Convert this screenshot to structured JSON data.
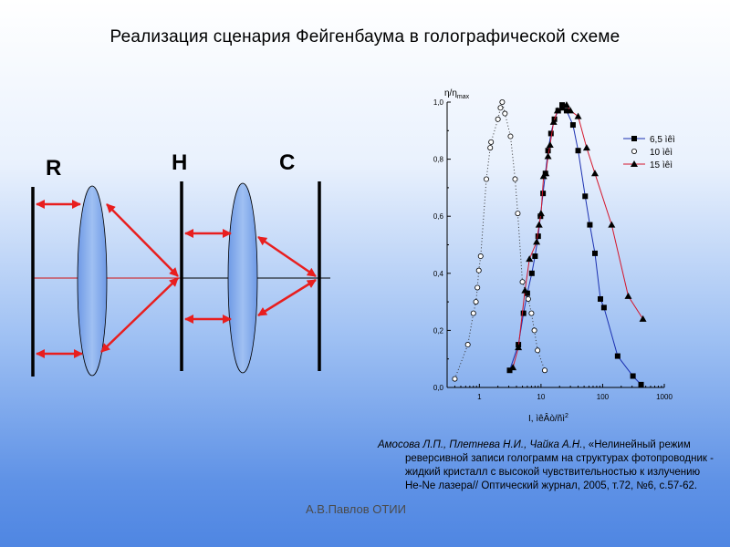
{
  "title": "Реализация сценария Фейгенбаума в голографической схеме",
  "diagram": {
    "label_r": "R",
    "label_h": "H",
    "label_c": "C"
  },
  "chart_data": {
    "type": "scatter",
    "y_axis_label": "η/η",
    "y_axis_label_sub": "max",
    "x_axis_label": "I, ìêÂò/ñì",
    "x_axis_label_sup": "2",
    "x_scale": "log",
    "xlim": [
      0.3,
      1000
    ],
    "ylim": [
      0.0,
      1.0
    ],
    "y_ticks": [
      "0,0",
      "0,2",
      "0,4",
      "0,6",
      "0,8",
      "1,0"
    ],
    "x_ticks": [
      "1",
      "10",
      "100",
      "1000"
    ],
    "grid": false,
    "legend_position": "right",
    "series": [
      {
        "name": "6,5 ìêì",
        "marker": "square",
        "line": "solid",
        "color": "#1a2fb0",
        "points": [
          [
            3.1,
            0.06
          ],
          [
            4.3,
            0.15
          ],
          [
            5.2,
            0.26
          ],
          [
            6.0,
            0.33
          ],
          [
            7.1,
            0.4
          ],
          [
            8.0,
            0.46
          ],
          [
            9.0,
            0.53
          ],
          [
            9.8,
            0.6
          ],
          [
            10.8,
            0.68
          ],
          [
            11.8,
            0.75
          ],
          [
            13.0,
            0.83
          ],
          [
            14.5,
            0.89
          ],
          [
            16.5,
            0.94
          ],
          [
            19.0,
            0.97
          ],
          [
            22.0,
            0.99
          ],
          [
            26.0,
            0.97
          ],
          [
            33.0,
            0.92
          ],
          [
            40.0,
            0.83
          ],
          [
            52.0,
            0.67
          ],
          [
            62.0,
            0.57
          ],
          [
            75.0,
            0.47
          ],
          [
            92.0,
            0.31
          ],
          [
            105.0,
            0.28
          ],
          [
            175.0,
            0.11
          ],
          [
            310.0,
            0.04
          ],
          [
            420.0,
            0.01
          ]
        ]
      },
      {
        "name": "10 ìêì",
        "marker": "circle",
        "line": "dotted",
        "color": "#333333",
        "points": [
          [
            0.4,
            0.03
          ],
          [
            0.65,
            0.15
          ],
          [
            0.8,
            0.26
          ],
          [
            0.88,
            0.3
          ],
          [
            0.93,
            0.35
          ],
          [
            0.98,
            0.41
          ],
          [
            1.05,
            0.46
          ],
          [
            1.3,
            0.73
          ],
          [
            1.5,
            0.84
          ],
          [
            1.55,
            0.86
          ],
          [
            2.0,
            0.94
          ],
          [
            2.2,
            0.98
          ],
          [
            2.35,
            1.0
          ],
          [
            2.6,
            0.96
          ],
          [
            3.2,
            0.88
          ],
          [
            3.8,
            0.73
          ],
          [
            4.2,
            0.61
          ],
          [
            5.0,
            0.37
          ],
          [
            6.2,
            0.31
          ],
          [
            7.0,
            0.26
          ],
          [
            7.8,
            0.2
          ],
          [
            8.8,
            0.13
          ],
          [
            11.5,
            0.06
          ]
        ]
      },
      {
        "name": "15 ìêì",
        "marker": "triangle",
        "line": "solid",
        "color": "#d4152a",
        "points": [
          [
            3.5,
            0.07
          ],
          [
            4.3,
            0.14
          ],
          [
            5.5,
            0.34
          ],
          [
            6.5,
            0.45
          ],
          [
            8.5,
            0.51
          ],
          [
            9.3,
            0.57
          ],
          [
            10.0,
            0.61
          ],
          [
            11.0,
            0.74
          ],
          [
            12.0,
            0.75
          ],
          [
            13.0,
            0.81
          ],
          [
            14.0,
            0.85
          ],
          [
            16.0,
            0.93
          ],
          [
            18.5,
            0.97
          ],
          [
            22.0,
            0.98
          ],
          [
            26.0,
            0.99
          ],
          [
            30.0,
            0.97
          ],
          [
            40.0,
            0.95
          ],
          [
            55.0,
            0.84
          ],
          [
            75.0,
            0.75
          ],
          [
            140.0,
            0.57
          ],
          [
            260.0,
            0.32
          ],
          [
            450.0,
            0.24
          ]
        ]
      }
    ]
  },
  "citation": {
    "authors": "Амосова Л.П., Плетнева Н.И., Чайка А.Н.",
    "text": ", «Нелинейный режим реверсивной записи голограмм на структурах фотопроводник - жидкий кристалл с высокой чувствительностью к излучению He-Ne лазера// Оптический журнал, 2005, т.72, №6, с.57-62."
  },
  "footer": "А.В.Павлов ОТИИ",
  "colors": {
    "arrow": "#e81e1e",
    "lens_fill": "#8ab0ec",
    "axis_line": "#cf1010"
  }
}
